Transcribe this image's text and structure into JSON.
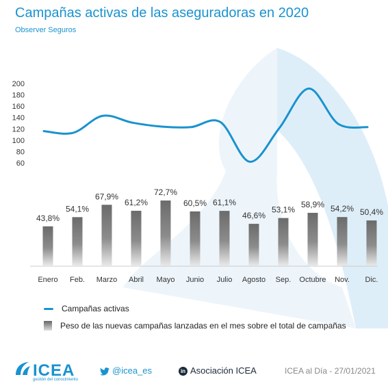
{
  "header": {
    "title": "Campañas activas de las aseguradoras en 2020",
    "subtitle": "Observer Seguros"
  },
  "colors": {
    "accent": "#1a92cf",
    "bar_dark": "#6b6b6b",
    "bar_light": "#e8e8e8",
    "watermark": "#deeef8"
  },
  "chart_data": {
    "type": "bar",
    "categories": [
      "Enero",
      "Feb.",
      "Marzo",
      "Abril",
      "Mayo",
      "Junio",
      "Julio",
      "Agosto",
      "Sep.",
      "Octubre",
      "Nov.",
      "Dic."
    ],
    "series": [
      {
        "name": "Campañas activas",
        "type": "line",
        "values": [
          116,
          113,
          143,
          131,
          124,
          123,
          132,
          62,
          121,
          191,
          129,
          123
        ],
        "ylim": [
          60,
          200
        ],
        "yticks": [
          "60",
          "80",
          "100",
          "120",
          "140",
          "160",
          "180",
          "200"
        ]
      },
      {
        "name": "Peso de las nuevas campañas lanzadas en el mes sobre el total de campañas",
        "type": "bar",
        "values": [
          43.8,
          54.1,
          67.9,
          61.2,
          72.7,
          60.5,
          61.1,
          46.6,
          53.1,
          58.9,
          54.2,
          50.4
        ],
        "labels": [
          "43,8%",
          "54,1%",
          "67,9%",
          "61,2%",
          "72,7%",
          "60,5%",
          "61,1%",
          "46,6%",
          "53,1%",
          "58,9%",
          "54,2%",
          "50,4%"
        ],
        "ylim": [
          0,
          100
        ]
      }
    ],
    "grid": false,
    "legend": "bottom"
  },
  "legend": {
    "line_label": "Campañas activas",
    "bar_label": "Peso de las nuevas campañas lanzadas en el mes sobre el total de campañas"
  },
  "footer": {
    "logo": "ICEA",
    "logo_sub": "gestión del conocimiento",
    "twitter": "@icea_es",
    "linkedin": "Asociación ICEA",
    "source_date": "ICEA al Día - 27/01/2021"
  },
  "icons": [
    "icea-logo-icon",
    "twitter-icon",
    "linkedin-icon"
  ]
}
